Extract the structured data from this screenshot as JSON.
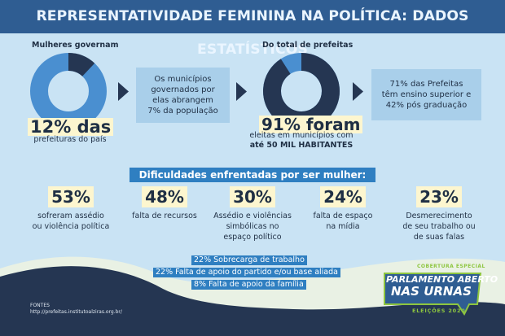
{
  "header": {
    "title": "REPRESENTATIVIDADE FEMININA NA POLÍTICA: DADOS ESTATÍSTICOS"
  },
  "colors": {
    "header_bg": "#2f5d92",
    "page_bg": "#c9e3f4",
    "dark_navy": "#253652",
    "accent_blue": "#2f7fc1",
    "donut_light": "#4a8fd0",
    "highlight": "#fdf6cf",
    "logo_green": "#8ec63f"
  },
  "left_block": {
    "label": "Mulheres governam",
    "donut_share_pct": 12,
    "big_number": "12% das",
    "sub": "prefeituras do país",
    "box_text_1": "Os municípios",
    "box_text_2": "governados por",
    "box_text_3": "elas abrangem",
    "box_text_4": "7% da população"
  },
  "right_block": {
    "label": "Do total de prefeitas",
    "donut_share_pct": 91,
    "big_number": "91% foram",
    "sub_1": "eleitas em municípios com",
    "sub_2": "até 50 MIL HABITANTES",
    "box_text_1": "71% das Prefeitas",
    "box_text_2": "têm ensino superior e",
    "box_text_3": "42% pós graduação"
  },
  "difficulties": {
    "title": "Dificuldades enfrentadas por ser mulher:",
    "items": [
      {
        "pct": "53%",
        "l1": "sofreram assédio",
        "l2": "ou violência política",
        "l3": ""
      },
      {
        "pct": "48%",
        "l1": "falta de recursos",
        "l2": "",
        "l3": ""
      },
      {
        "pct": "30%",
        "l1": "Assédio e violências",
        "l2": "simbólicas no",
        "l3": "espaço político"
      },
      {
        "pct": "24%",
        "l1": "falta de espaço",
        "l2": "na mídia",
        "l3": ""
      },
      {
        "pct": "23%",
        "l1": "Desmerecimento",
        "l2": "de seu trabalho ou",
        "l3": "de suas falas"
      }
    ],
    "extra": [
      "22% Sobrecarga de trabalho",
      "22% Falta de apoio do partido e/ou base aliada",
      "8% Falta de apoio da família"
    ]
  },
  "footer": {
    "sources_label": "FONTES",
    "sources_link": "http://prefeitas.institutoalziras.org.br/"
  },
  "logo": {
    "top": "COBERTURA ESPECIAL",
    "line1": "PARLAMENTO ABERTO",
    "line2": "NAS URNAS",
    "year": "ELEIÇÕES 2020"
  }
}
